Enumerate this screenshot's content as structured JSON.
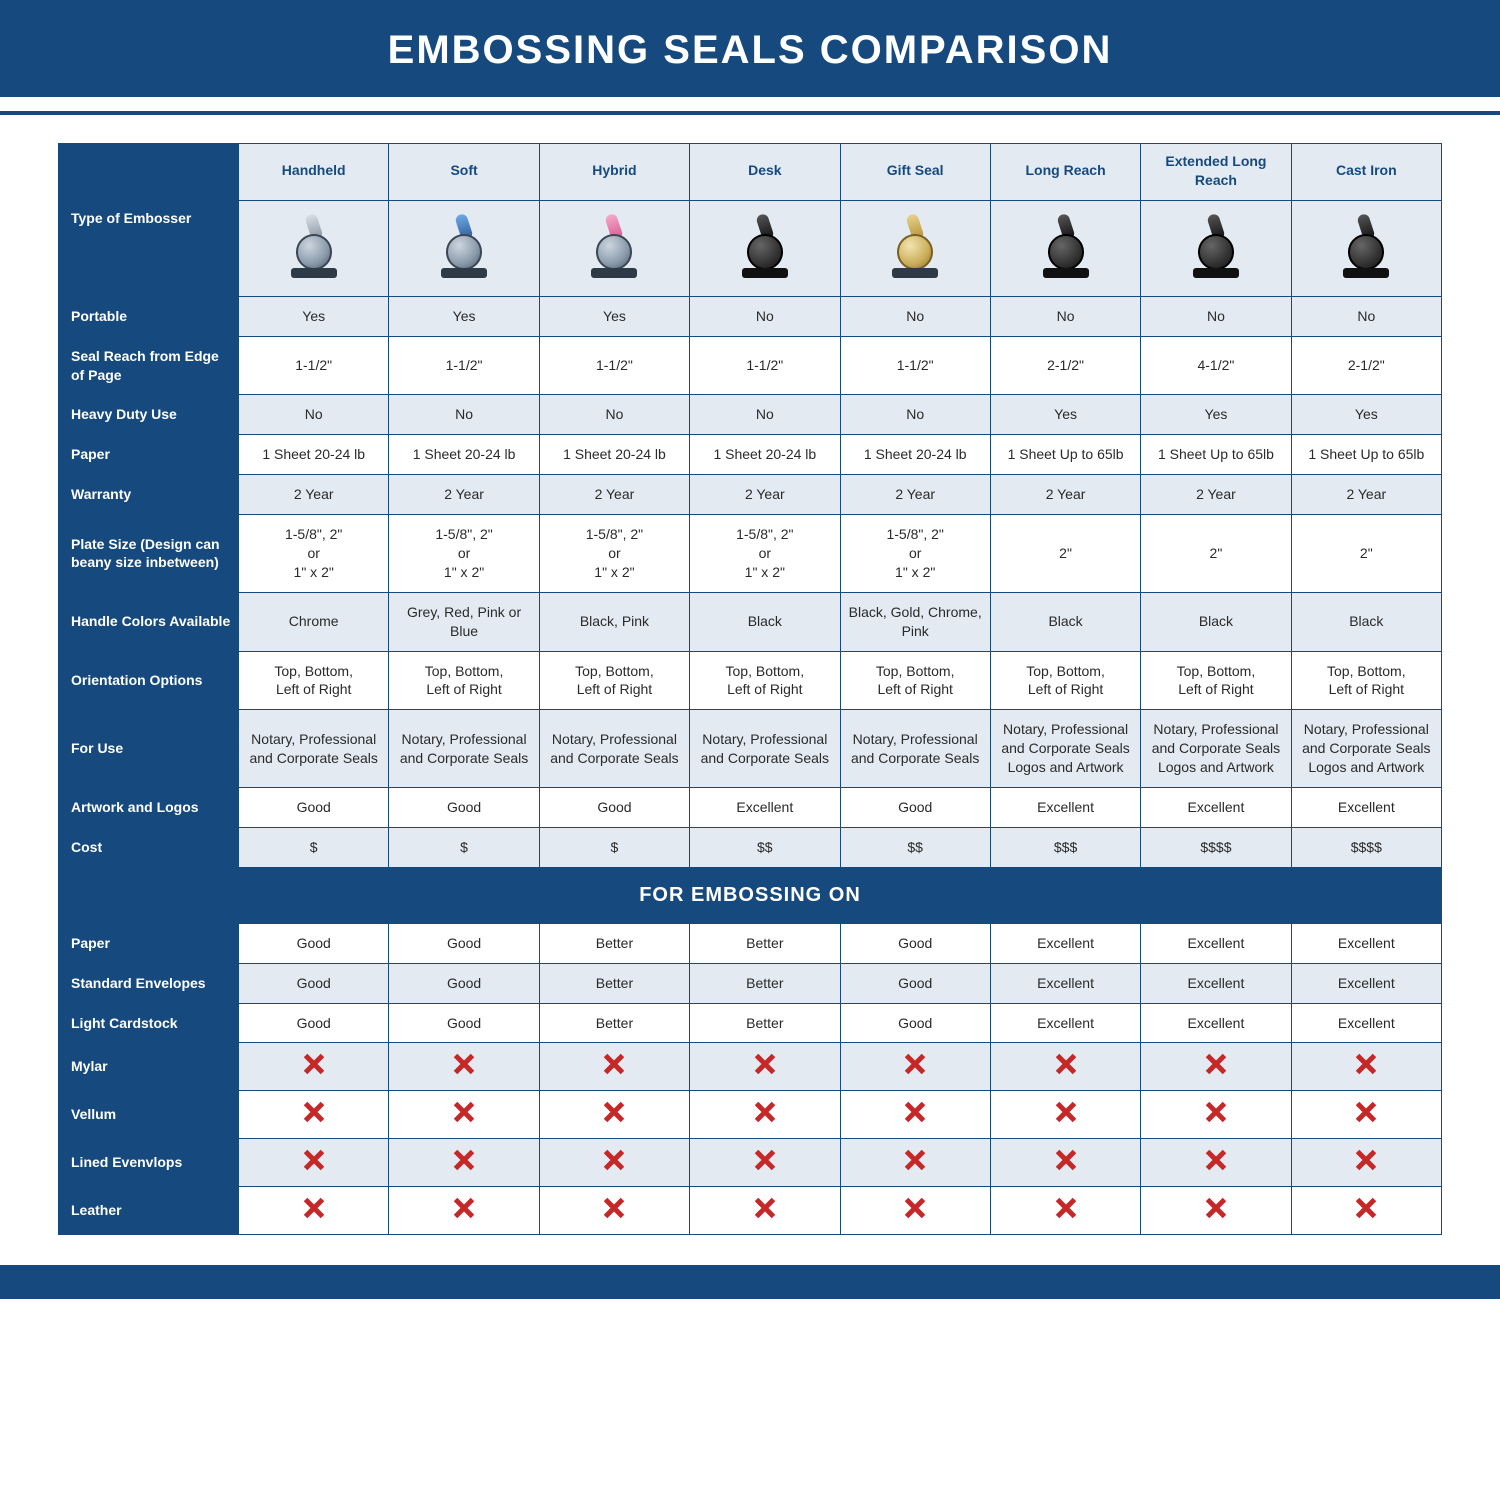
{
  "title": "EMBOSSING SEALS COMPARISON",
  "colors": {
    "brand": "#164a7f",
    "header_bg": "#e3eaf2",
    "alt_row_bg": "#e3eaf2",
    "text": "#2a2a2a",
    "x_icon": "#c62828",
    "background": "#ffffff"
  },
  "table": {
    "type": "table",
    "row_header_label": "Type of Embosser",
    "columns": [
      "Handheld",
      "Soft",
      "Hybrid",
      "Desk",
      "Gift Seal",
      "Long Reach",
      "Extended Long Reach",
      "Cast Iron"
    ],
    "column_icon_colors": [
      "chrome",
      "blue",
      "pink",
      "black",
      "gold",
      "black",
      "black",
      "black"
    ],
    "rows": [
      {
        "label": "Portable",
        "alt": true,
        "cells": [
          "Yes",
          "Yes",
          "Yes",
          "No",
          "No",
          "No",
          "No",
          "No"
        ]
      },
      {
        "label": "Seal Reach from Edge of Page",
        "alt": false,
        "cells": [
          "1-1/2\"",
          "1-1/2\"",
          "1-1/2\"",
          "1-1/2\"",
          "1-1/2\"",
          "2-1/2\"",
          "4-1/2\"",
          "2-1/2\""
        ]
      },
      {
        "label": "Heavy Duty Use",
        "alt": true,
        "cells": [
          "No",
          "No",
          "No",
          "No",
          "No",
          "Yes",
          "Yes",
          "Yes"
        ]
      },
      {
        "label": "Paper",
        "alt": false,
        "cells": [
          "1 Sheet 20-24 lb",
          "1 Sheet 20-24 lb",
          "1 Sheet 20-24 lb",
          "1 Sheet 20-24 lb",
          "1 Sheet 20-24 lb",
          "1 Sheet Up to 65lb",
          "1 Sheet Up to 65lb",
          "1 Sheet Up to 65lb"
        ]
      },
      {
        "label": "Warranty",
        "alt": true,
        "cells": [
          "2 Year",
          "2 Year",
          "2 Year",
          "2 Year",
          "2 Year",
          "2 Year",
          "2 Year",
          "2 Year"
        ]
      },
      {
        "label": "Plate Size (Design can beany size inbetween)",
        "alt": false,
        "cells": [
          "1-5/8\", 2\"\nor\n1\" x 2\"",
          "1-5/8\", 2\"\nor\n1\" x 2\"",
          "1-5/8\", 2\"\nor\n1\" x 2\"",
          "1-5/8\", 2\"\nor\n1\" x 2\"",
          "1-5/8\", 2\"\nor\n1\" x 2\"",
          "2\"",
          "2\"",
          "2\""
        ]
      },
      {
        "label": "Handle Colors Available",
        "alt": true,
        "cells": [
          "Chrome",
          "Grey, Red, Pink or Blue",
          "Black, Pink",
          "Black",
          "Black, Gold, Chrome, Pink",
          "Black",
          "Black",
          "Black"
        ]
      },
      {
        "label": "Orientation Options",
        "alt": false,
        "cells": [
          "Top, Bottom,\nLeft of Right",
          "Top, Bottom,\nLeft of Right",
          "Top, Bottom,\nLeft of Right",
          "Top, Bottom,\nLeft of Right",
          "Top, Bottom,\nLeft of Right",
          "Top, Bottom,\nLeft of Right",
          "Top, Bottom,\nLeft of Right",
          "Top, Bottom,\nLeft of Right"
        ]
      },
      {
        "label": "For Use",
        "alt": true,
        "cells": [
          "Notary, Professional and Corporate Seals",
          "Notary, Professional and Corporate Seals",
          "Notary, Professional and Corporate Seals",
          "Notary, Professional and Corporate Seals",
          "Notary, Professional and Corporate Seals",
          "Notary, Professional and Corporate Seals Logos and Artwork",
          "Notary, Professional and Corporate Seals Logos and Artwork",
          "Notary, Professional and Corporate Seals Logos and Artwork"
        ]
      },
      {
        "label": "Artwork and Logos",
        "alt": false,
        "cells": [
          "Good",
          "Good",
          "Good",
          "Excellent",
          "Good",
          "Excellent",
          "Excellent",
          "Excellent"
        ]
      },
      {
        "label": "Cost",
        "alt": true,
        "cells": [
          "$",
          "$",
          "$",
          "$$",
          "$$",
          "$$$",
          "$$$$",
          "$$$$"
        ]
      }
    ],
    "section_label": "FOR EMBOSSING ON",
    "emboss_rows": [
      {
        "label": "Paper",
        "alt": false,
        "cells": [
          "Good",
          "Good",
          "Better",
          "Better",
          "Good",
          "Excellent",
          "Excellent",
          "Excellent"
        ]
      },
      {
        "label": "Standard Envelopes",
        "alt": true,
        "cells": [
          "Good",
          "Good",
          "Better",
          "Better",
          "Good",
          "Excellent",
          "Excellent",
          "Excellent"
        ]
      },
      {
        "label": "Light Cardstock",
        "alt": false,
        "cells": [
          "Good",
          "Good",
          "Better",
          "Better",
          "Good",
          "Excellent",
          "Excellent",
          "Excellent"
        ]
      },
      {
        "label": "Mylar",
        "alt": true,
        "cells": [
          "X",
          "X",
          "X",
          "X",
          "X",
          "X",
          "X",
          "X"
        ]
      },
      {
        "label": "Vellum",
        "alt": false,
        "cells": [
          "X",
          "X",
          "X",
          "X",
          "X",
          "X",
          "X",
          "X"
        ]
      },
      {
        "label": "Lined Evenvlops",
        "alt": true,
        "cells": [
          "X",
          "X",
          "X",
          "X",
          "X",
          "X",
          "X",
          "X"
        ]
      },
      {
        "label": "Leather",
        "alt": false,
        "cells": [
          "X",
          "X",
          "X",
          "X",
          "X",
          "X",
          "X",
          "X"
        ]
      }
    ]
  }
}
